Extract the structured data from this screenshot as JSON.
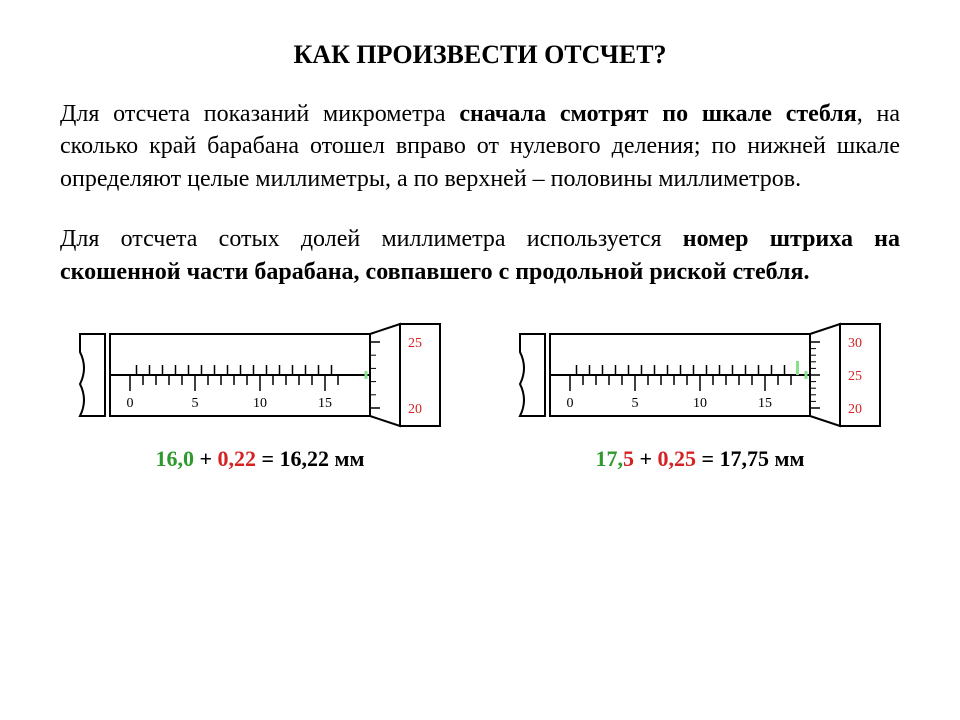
{
  "title": "КАК ПРОИЗВЕСТИ ОТСЧЕТ?",
  "para1": {
    "t1": "Для отсчета показаний микрометра ",
    "b1": "сначала смотрят по шкале стебля",
    "t2": ", на сколько край барабана отошел вправо от нулевого деления; по нижней шкале определяют целые миллиметры, а по верхней – половины миллиметров."
  },
  "para2": {
    "t1": "Для отсчета сотых долей  миллиметра используется ",
    "b1": "номер штриха на скошенной части барабана, совпавшего с продольной риской стебля."
  },
  "micrometer1": {
    "mainTicks": {
      "start": 0,
      "step": 5,
      "labels": [
        "0",
        "5",
        "10",
        "15"
      ]
    },
    "thimbleLabels": [
      "25",
      "20"
    ],
    "thimbleColor": "#d62222",
    "pointerTick": 16,
    "halfTickAt": null,
    "eq": {
      "a": "16,0",
      "plus": " + ",
      "b": "0,22",
      "eqRest": " = 16,22 мм"
    },
    "eqAColor": "#2e9a2e",
    "eqBColor": "#d62222"
  },
  "micrometer2": {
    "mainTicks": {
      "start": 0,
      "step": 5,
      "labels": [
        "0",
        "5",
        "10",
        "15"
      ]
    },
    "thimbleLabels": [
      "30",
      "25",
      "20"
    ],
    "thimbleColor": "#d62222",
    "pointerTick": 17,
    "halfTickAt": 17.5,
    "eq": {
      "a": "17,",
      "a2": "5",
      "plus": " + ",
      "b": "0,25",
      "eqRest": " = 17,75 мм"
    },
    "eqAColor": "#2e9a2e",
    "eqBColor": "#d62222"
  },
  "svgStyle": {
    "stroke": "#000000",
    "fill": "#ffffff",
    "tickLabelColor": "#000000",
    "tickLabelSize": 14,
    "halfTickMarker": "#8be08b"
  }
}
